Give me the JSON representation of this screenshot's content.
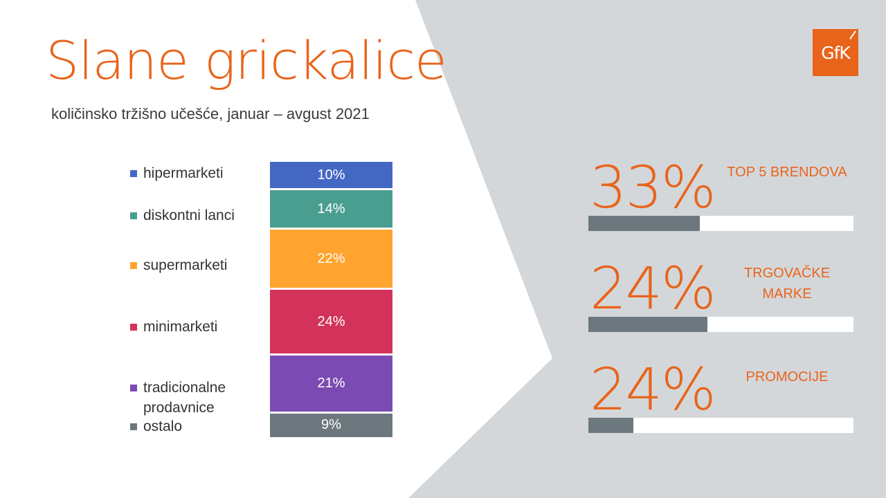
{
  "title": "Slane grickalice",
  "subtitle": "količinsko tržišno učešće, januar – avgust 2021",
  "logo": {
    "text": "GfK"
  },
  "colors": {
    "accent": "#e8641b",
    "panel": "#d4d7da",
    "bar_fill": "#6d787e",
    "hipermarketi": "#4567c4",
    "diskontni_lanci": "#4a9e8f",
    "supermarketi": "#ffa42e",
    "minimarketi": "#d3335b",
    "tradicionalne": "#7b4bb3",
    "ostalo": "#6d787e"
  },
  "chart_data": [
    {
      "type": "bar",
      "stacked": true,
      "categories": [
        "hipermarketi",
        "diskontni lanci",
        "supermarketi",
        "minimarketi",
        "tradicionalne prodavnice",
        "ostalo"
      ],
      "values": [
        10,
        14,
        22,
        24,
        21,
        9
      ],
      "value_labels": [
        "10%",
        "14%",
        "22%",
        "24%",
        "21%",
        "9%"
      ],
      "colors": [
        "#4567c4",
        "#4a9e8f",
        "#ffa42e",
        "#d3335b",
        "#7b4bb3",
        "#6d787e"
      ],
      "legend": "left"
    },
    {
      "type": "bar",
      "orientation": "horizontal",
      "categories": [
        "TOP 5 BRENDOVA",
        "TRGOVAČKE MARKE",
        "PROMOCIJE"
      ],
      "values": [
        33,
        24,
        24
      ],
      "value_labels": [
        "33%",
        "24%",
        "24%"
      ],
      "bar_fill_fractions": [
        0.42,
        0.45,
        0.17
      ],
      "xlim": [
        0,
        100
      ]
    }
  ],
  "kpis": [
    {
      "value": "33%",
      "label": "TOP 5 BRENDOVA",
      "fill": 0.42
    },
    {
      "value": "24%",
      "label": "TRGOVAČKE MARKE",
      "fill": 0.45
    },
    {
      "value": "24%",
      "label": "PROMOCIJE",
      "fill": 0.17
    }
  ]
}
